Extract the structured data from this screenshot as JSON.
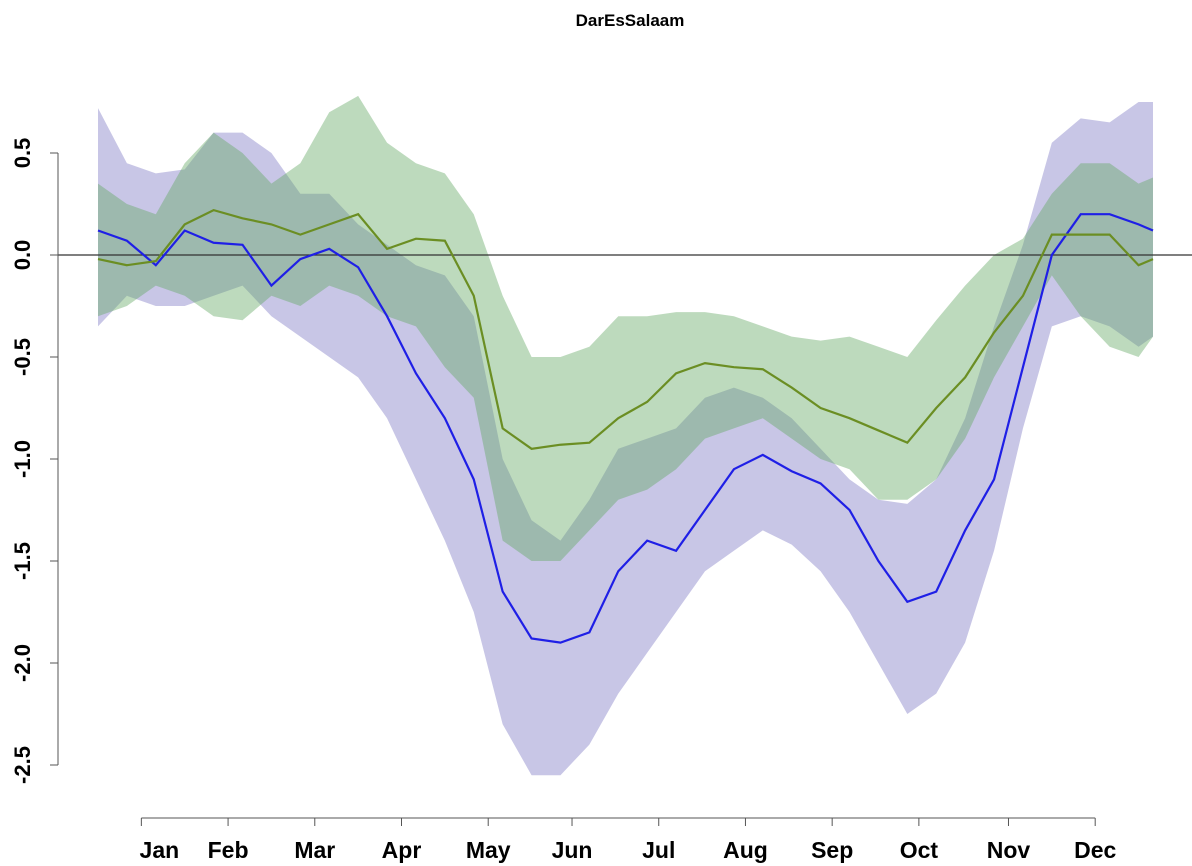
{
  "chart_data": {
    "type": "band-line",
    "title": "DarEsSalaam",
    "x": [
      0,
      10,
      20,
      30,
      40,
      50,
      60,
      70,
      80,
      90,
      100,
      110,
      120,
      130,
      140,
      150,
      160,
      170,
      180,
      190,
      200,
      210,
      220,
      230,
      240,
      250,
      260,
      270,
      280,
      290,
      300,
      310,
      320,
      330,
      340,
      350,
      360,
      365
    ],
    "series": [
      {
        "color": "#1f1fe6",
        "band_color": "#c8c6e6",
        "band_opacity": 1,
        "values": [
          0.12,
          0.07,
          -0.05,
          0.12,
          0.06,
          0.05,
          -0.15,
          -0.02,
          0.03,
          -0.06,
          -0.3,
          -0.58,
          -0.8,
          -1.1,
          -1.65,
          -1.88,
          -1.9,
          -1.85,
          -1.55,
          -1.4,
          -1.45,
          -1.25,
          -1.05,
          -0.98,
          -1.06,
          -1.12,
          -1.25,
          -1.5,
          -1.7,
          -1.65,
          -1.35,
          -1.1,
          -0.55,
          0.0,
          0.2,
          0.2,
          0.15,
          0.12
        ],
        "upper": [
          0.72,
          0.45,
          0.4,
          0.42,
          0.6,
          0.6,
          0.5,
          0.3,
          0.3,
          0.15,
          0.05,
          -0.05,
          -0.1,
          -0.3,
          -1.0,
          -1.3,
          -1.4,
          -1.2,
          -0.95,
          -0.9,
          -0.85,
          -0.7,
          -0.65,
          -0.7,
          -0.8,
          -0.95,
          -1.1,
          -1.2,
          -1.22,
          -1.1,
          -0.8,
          -0.35,
          0.05,
          0.55,
          0.67,
          0.65,
          0.75,
          0.75
        ],
        "lower": [
          -0.35,
          -0.2,
          -0.25,
          -0.25,
          -0.2,
          -0.15,
          -0.3,
          -0.4,
          -0.5,
          -0.6,
          -0.8,
          -1.1,
          -1.4,
          -1.75,
          -2.3,
          -2.55,
          -2.55,
          -2.4,
          -2.15,
          -1.95,
          -1.75,
          -1.55,
          -1.45,
          -1.35,
          -1.42,
          -1.55,
          -1.75,
          -2.0,
          -2.25,
          -2.15,
          -1.9,
          -1.45,
          -0.85,
          -0.35,
          -0.3,
          -0.35,
          -0.45,
          -0.4
        ]
      },
      {
        "color": "#6b8e23",
        "band_color": "#62a862",
        "band_opacity": 0.42,
        "values": [
          -0.02,
          -0.05,
          -0.03,
          0.15,
          0.22,
          0.18,
          0.15,
          0.1,
          0.15,
          0.2,
          0.03,
          0.08,
          0.07,
          -0.2,
          -0.85,
          -0.95,
          -0.93,
          -0.92,
          -0.8,
          -0.72,
          -0.58,
          -0.53,
          -0.55,
          -0.56,
          -0.65,
          -0.75,
          -0.8,
          -0.86,
          -0.92,
          -0.75,
          -0.6,
          -0.38,
          -0.2,
          0.1,
          0.1,
          0.1,
          -0.05,
          -0.02
        ],
        "upper": [
          0.35,
          0.25,
          0.2,
          0.45,
          0.6,
          0.5,
          0.35,
          0.45,
          0.7,
          0.78,
          0.55,
          0.45,
          0.4,
          0.2,
          -0.2,
          -0.5,
          -0.5,
          -0.45,
          -0.3,
          -0.3,
          -0.28,
          -0.28,
          -0.3,
          -0.35,
          -0.4,
          -0.42,
          -0.4,
          -0.45,
          -0.5,
          -0.32,
          -0.15,
          0.0,
          0.08,
          0.3,
          0.45,
          0.45,
          0.35,
          0.38
        ],
        "lower": [
          -0.3,
          -0.25,
          -0.15,
          -0.2,
          -0.3,
          -0.32,
          -0.2,
          -0.25,
          -0.15,
          -0.2,
          -0.3,
          -0.35,
          -0.55,
          -0.7,
          -1.4,
          -1.5,
          -1.5,
          -1.35,
          -1.2,
          -1.15,
          -1.05,
          -0.9,
          -0.85,
          -0.8,
          -0.9,
          -1.0,
          -1.05,
          -1.2,
          -1.2,
          -1.1,
          -0.9,
          -0.6,
          -0.35,
          -0.1,
          -0.3,
          -0.45,
          -0.5,
          -0.4
        ]
      }
    ],
    "xlim": [
      0,
      365
    ],
    "xticks": [
      {
        "value": 15,
        "label": "Jan"
      },
      {
        "value": 45,
        "label": "Feb"
      },
      {
        "value": 75,
        "label": "Mar"
      },
      {
        "value": 105,
        "label": "Apr"
      },
      {
        "value": 135,
        "label": "May"
      },
      {
        "value": 164,
        "label": "Jun"
      },
      {
        "value": 194,
        "label": "Jul"
      },
      {
        "value": 224,
        "label": "Aug"
      },
      {
        "value": 254,
        "label": "Sep"
      },
      {
        "value": 284,
        "label": "Oct"
      },
      {
        "value": 315,
        "label": "Nov"
      },
      {
        "value": 345,
        "label": "Dec"
      }
    ],
    "ylim": [
      -2.75,
      0.85
    ],
    "yticks": [
      {
        "value": 0.5,
        "label": "0.5"
      },
      {
        "value": 0,
        "label": "0.0"
      },
      {
        "value": -0.5,
        "label": "-0.5"
      },
      {
        "value": -1,
        "label": "-1.0"
      },
      {
        "value": -1.5,
        "label": "-1.5"
      },
      {
        "value": -2,
        "label": "-2.0"
      },
      {
        "value": -2.5,
        "label": "-2.5"
      }
    ],
    "hline": 0
  }
}
